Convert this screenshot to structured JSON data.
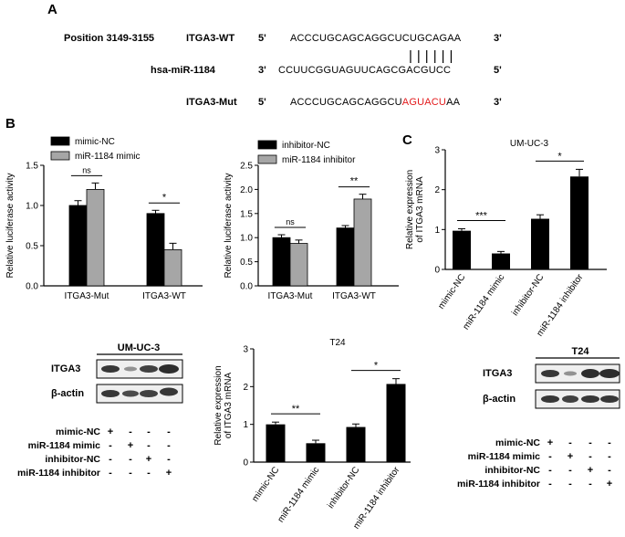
{
  "panel_a": {
    "letter": "A",
    "position": "Position 3149-3155",
    "rows": [
      {
        "name": "ITGA3-WT",
        "p1": "5'",
        "seq_black": "ACCCUGCAGCAGGCUCUGCAGAA",
        "seq_red": "",
        "seq_tail": "",
        "p2": "3'"
      },
      {
        "name": "hsa-miR-1184",
        "p1": "3'",
        "seq_black": "CCUUCGGUAGUUCAGCGACGUCC",
        "seq_red": "",
        "seq_tail": "",
        "p2": "5'"
      },
      {
        "name": "ITGA3-Mut",
        "p1": "5'",
        "seq_black": "ACCCUGCAGCAGGCU",
        "seq_red": "AGUACU",
        "seq_tail": "AA",
        "p2": "3'"
      }
    ],
    "pairing_marks": "||||||"
  },
  "panel_b": {
    "letter": "B"
  },
  "panel_c": {
    "letter": "C"
  },
  "sig": {
    "ns": "ns",
    "one": "*",
    "two": "**",
    "three": "***"
  },
  "chart_data": [
    {
      "type": "bar",
      "ylabel": "Relative luciferase activity",
      "categories": [
        "ITGA3-Mut",
        "ITGA3-WT"
      ],
      "ylim": [
        0,
        1.5
      ],
      "yticks": [
        "0.0",
        "0.5",
        "1.0",
        "1.5"
      ],
      "legend": [
        "mimic-NC",
        "miR-1184 mimic"
      ],
      "series": [
        {
          "name": "mimic-NC",
          "values": [
            1.0,
            0.9
          ],
          "errors": [
            0.06,
            0.04
          ]
        },
        {
          "name": "miR-1184 mimic",
          "values": [
            1.2,
            0.45
          ],
          "errors": [
            0.08,
            0.08
          ]
        }
      ],
      "significance": [
        "ns",
        "*"
      ]
    },
    {
      "type": "bar",
      "ylabel": "Relative luciferase activity",
      "categories": [
        "ITGA3-Mut",
        "ITGA3-WT"
      ],
      "ylim": [
        0,
        2.5
      ],
      "yticks": [
        "0.0",
        "0.5",
        "1.0",
        "1.5",
        "2.0",
        "2.5"
      ],
      "legend": [
        "inhibitor-NC",
        "miR-1184 inhibitor"
      ],
      "series": [
        {
          "name": "inhibitor-NC",
          "values": [
            1.0,
            1.2
          ],
          "errors": [
            0.06,
            0.05
          ]
        },
        {
          "name": "miR-1184 inhibitor",
          "values": [
            0.88,
            1.8
          ],
          "errors": [
            0.07,
            0.1
          ]
        }
      ],
      "significance": [
        "ns",
        "**"
      ]
    },
    {
      "type": "bar",
      "title": "UM-UC-3",
      "ylabel": "Relative expression of ITGA3 mRNA",
      "categories": [
        "mimic-NC",
        "miR-1184 mimic",
        "inhibitor-NC",
        "miR-1184 inhibitor"
      ],
      "values": [
        0.97,
        0.4,
        1.27,
        2.33
      ],
      "errors": [
        0.05,
        0.05,
        0.1,
        0.18
      ],
      "ylim": [
        0,
        3
      ],
      "yticks": [
        "0",
        "1",
        "2",
        "3"
      ],
      "significance": [
        "***",
        "*"
      ]
    },
    {
      "type": "bar",
      "title": "T24",
      "ylabel": "Relative expression of ITGA3 mRNA",
      "categories": [
        "mimic-NC",
        "miR-1184 mimic",
        "inhibitor-NC",
        "miR-1184 inhibitor"
      ],
      "values": [
        1.0,
        0.5,
        0.93,
        2.07
      ],
      "errors": [
        0.06,
        0.08,
        0.08,
        0.14
      ],
      "ylim": [
        0,
        3
      ],
      "yticks": [
        "0",
        "1",
        "2",
        "3"
      ],
      "significance": [
        "**",
        "*"
      ]
    }
  ],
  "blots": [
    {
      "title": "UM-UC-3",
      "rows": [
        "ITGA3",
        "β-actin"
      ],
      "conditions": [
        "mimic-NC",
        "miR-1184 mimic",
        "inhibitor-NC",
        "miR-1184 inhibitor"
      ],
      "matrix": [
        [
          "+",
          "-",
          "-",
          "-"
        ],
        [
          "-",
          "+",
          "-",
          "-"
        ],
        [
          "-",
          "-",
          "+",
          "-"
        ],
        [
          "-",
          "-",
          "-",
          "+"
        ]
      ]
    },
    {
      "title": "T24",
      "rows": [
        "ITGA3",
        "β-actin"
      ],
      "conditions": [
        "mimic-NC",
        "miR-1184 mimic",
        "inhibitor-NC",
        "miR-1184 inhibitor"
      ],
      "matrix": [
        [
          "+",
          "-",
          "-",
          "-"
        ],
        [
          "-",
          "+",
          "-",
          "-"
        ],
        [
          "-",
          "-",
          "+",
          "-"
        ],
        [
          "-",
          "-",
          "-",
          "+"
        ]
      ]
    }
  ]
}
